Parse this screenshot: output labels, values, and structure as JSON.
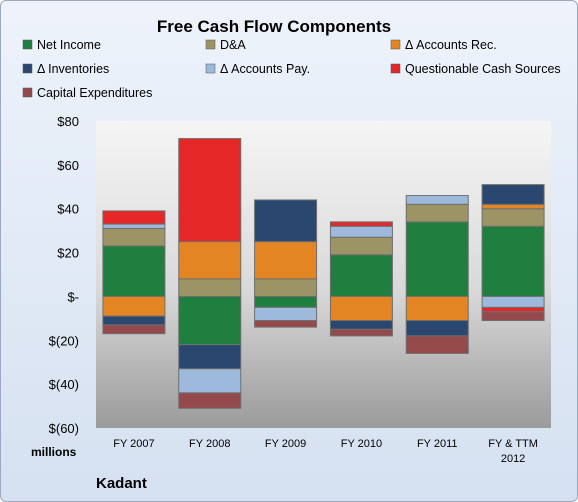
{
  "chart_data": {
    "type": "bar",
    "stacked": true,
    "title": "Free Cash Flow Components",
    "ylabel": "",
    "unit_label": "millions",
    "source_label": "Kadant",
    "ylim": [
      -60,
      80
    ],
    "yticks": [
      80,
      60,
      40,
      20,
      0,
      -20,
      -40,
      -60
    ],
    "ytick_labels": [
      "$80",
      "$60",
      "$40",
      "$20",
      "$-",
      "$(20)",
      "$(40)",
      "$(60)"
    ],
    "categories": [
      "FY 2007",
      "FY 2008",
      "FY 2009",
      "FY 2010",
      "FY 2011",
      "FY & TTM 2012"
    ],
    "legend_position": "top",
    "grid": false,
    "series": [
      {
        "name": "Net Income",
        "color": "#1f7f3f",
        "values": [
          23,
          -22,
          -5,
          19,
          34,
          32
        ]
      },
      {
        "name": "D&A",
        "color": "#9c9464",
        "values": [
          8,
          8,
          8,
          8,
          8,
          8
        ]
      },
      {
        "name": "Δ Accounts Rec.",
        "color": "#e38522",
        "values": [
          -9,
          17,
          17,
          -11,
          -11,
          2
        ]
      },
      {
        "name": "Δ Inventories",
        "color": "#2a4770",
        "values": [
          -4,
          -11,
          19,
          -4,
          -7,
          9
        ]
      },
      {
        "name": "Δ Accounts Pay.",
        "color": "#9db9dc",
        "values": [
          2,
          -11,
          -6,
          5,
          4,
          -5
        ]
      },
      {
        "name": "Questionable Cash Sources",
        "color": "#e52727",
        "values": [
          6,
          47,
          0,
          2,
          0,
          -2
        ]
      },
      {
        "name": "Capital Expenditures",
        "color": "#944a4a",
        "values": [
          -4,
          -7,
          -3,
          -3,
          -8,
          -4
        ]
      }
    ]
  }
}
